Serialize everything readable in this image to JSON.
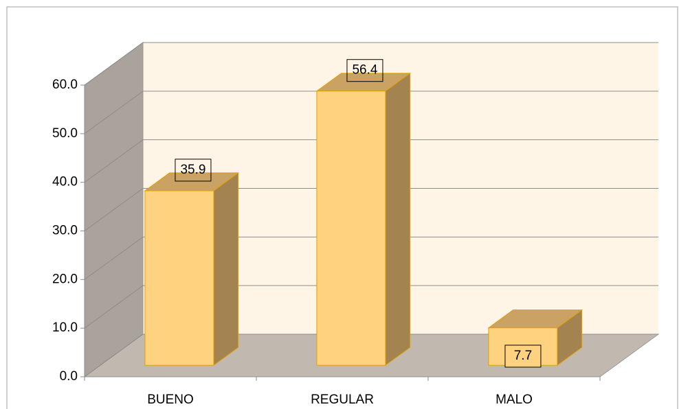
{
  "chart_data": {
    "type": "bar3d",
    "categories": [
      "BUENO",
      "REGULAR",
      "MALO"
    ],
    "values": [
      35.9,
      56.4,
      7.7
    ],
    "color": "#ffd280",
    "ylim": [
      0,
      60
    ],
    "yticks": [
      {
        "value": 0,
        "label": "0.0"
      },
      {
        "value": 10,
        "label": "10.0"
      },
      {
        "value": 20,
        "label": "20.0"
      },
      {
        "value": 30,
        "label": "30.0"
      },
      {
        "value": 40,
        "label": "40.0"
      },
      {
        "value": 50,
        "label": "50.0"
      },
      {
        "value": 60,
        "label": "60.0"
      }
    ],
    "grid": true
  }
}
